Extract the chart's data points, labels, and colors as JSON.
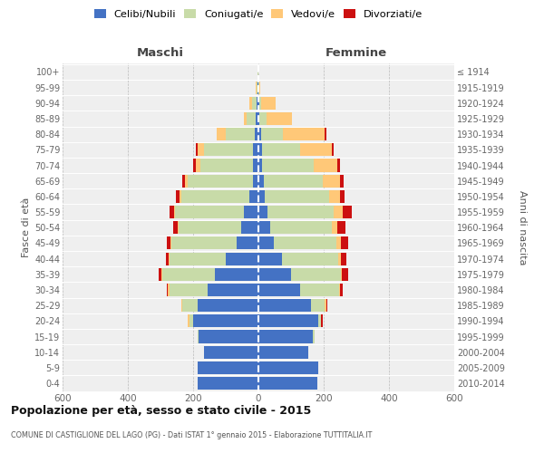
{
  "age_groups": [
    "0-4",
    "5-9",
    "10-14",
    "15-19",
    "20-24",
    "25-29",
    "30-34",
    "35-39",
    "40-44",
    "45-49",
    "50-54",
    "55-59",
    "60-64",
    "65-69",
    "70-74",
    "75-79",
    "80-84",
    "85-89",
    "90-94",
    "95-99",
    "100+"
  ],
  "birth_years": [
    "2010-2014",
    "2005-2009",
    "2000-2004",
    "1995-1999",
    "1990-1994",
    "1985-1989",
    "1980-1984",
    "1975-1979",
    "1970-1974",
    "1965-1969",
    "1960-1964",
    "1955-1959",
    "1950-1954",
    "1945-1949",
    "1940-1944",
    "1935-1939",
    "1930-1934",
    "1925-1929",
    "1920-1924",
    "1915-1919",
    "≤ 1914"
  ],
  "maschi_celibi": [
    185,
    185,
    168,
    182,
    200,
    185,
    155,
    132,
    100,
    68,
    52,
    45,
    28,
    18,
    16,
    18,
    12,
    8,
    5,
    2,
    1
  ],
  "maschi_coniugati": [
    0,
    0,
    0,
    4,
    12,
    48,
    118,
    162,
    172,
    198,
    192,
    210,
    208,
    200,
    162,
    150,
    88,
    28,
    14,
    4,
    1
  ],
  "maschi_vedovi": [
    0,
    0,
    0,
    0,
    4,
    4,
    4,
    4,
    4,
    4,
    4,
    4,
    6,
    8,
    15,
    18,
    28,
    8,
    8,
    2,
    0
  ],
  "maschi_divorziati": [
    0,
    0,
    0,
    0,
    0,
    0,
    4,
    8,
    8,
    10,
    14,
    14,
    10,
    8,
    6,
    6,
    0,
    0,
    0,
    0,
    0
  ],
  "femmine_nubili": [
    180,
    182,
    152,
    168,
    182,
    162,
    128,
    100,
    72,
    48,
    36,
    28,
    20,
    16,
    12,
    10,
    8,
    4,
    2,
    0,
    0
  ],
  "femmine_coniugate": [
    0,
    0,
    0,
    4,
    10,
    42,
    118,
    152,
    172,
    192,
    188,
    202,
    198,
    182,
    158,
    118,
    68,
    22,
    6,
    2,
    0
  ],
  "femmine_vedove": [
    0,
    0,
    0,
    0,
    0,
    4,
    4,
    4,
    8,
    12,
    18,
    28,
    32,
    52,
    72,
    98,
    128,
    78,
    44,
    4,
    0
  ],
  "femmine_divorziate": [
    0,
    0,
    0,
    0,
    4,
    4,
    8,
    18,
    18,
    24,
    24,
    28,
    14,
    10,
    8,
    4,
    4,
    0,
    0,
    0,
    0
  ],
  "colors_celibi": "#4472c4",
  "colors_coniugati": "#c8dba8",
  "colors_vedovi": "#ffc878",
  "colors_divorziati": "#cc1010",
  "xlim": 600,
  "title": "Popolazione per età, sesso e stato civile - 2015",
  "subtitle": "COMUNE DI CASTIGLIONE DEL LAGO (PG) - Dati ISTAT 1° gennaio 2015 - Elaborazione TUTTITALIA.IT",
  "ylabel": "Fasce di età",
  "ylabel_right": "Anni di nascita",
  "legend_labels": [
    "Celibi/Nubili",
    "Coniugati/e",
    "Vedovi/e",
    "Divorziati/e"
  ],
  "bg_color": "#efefef"
}
